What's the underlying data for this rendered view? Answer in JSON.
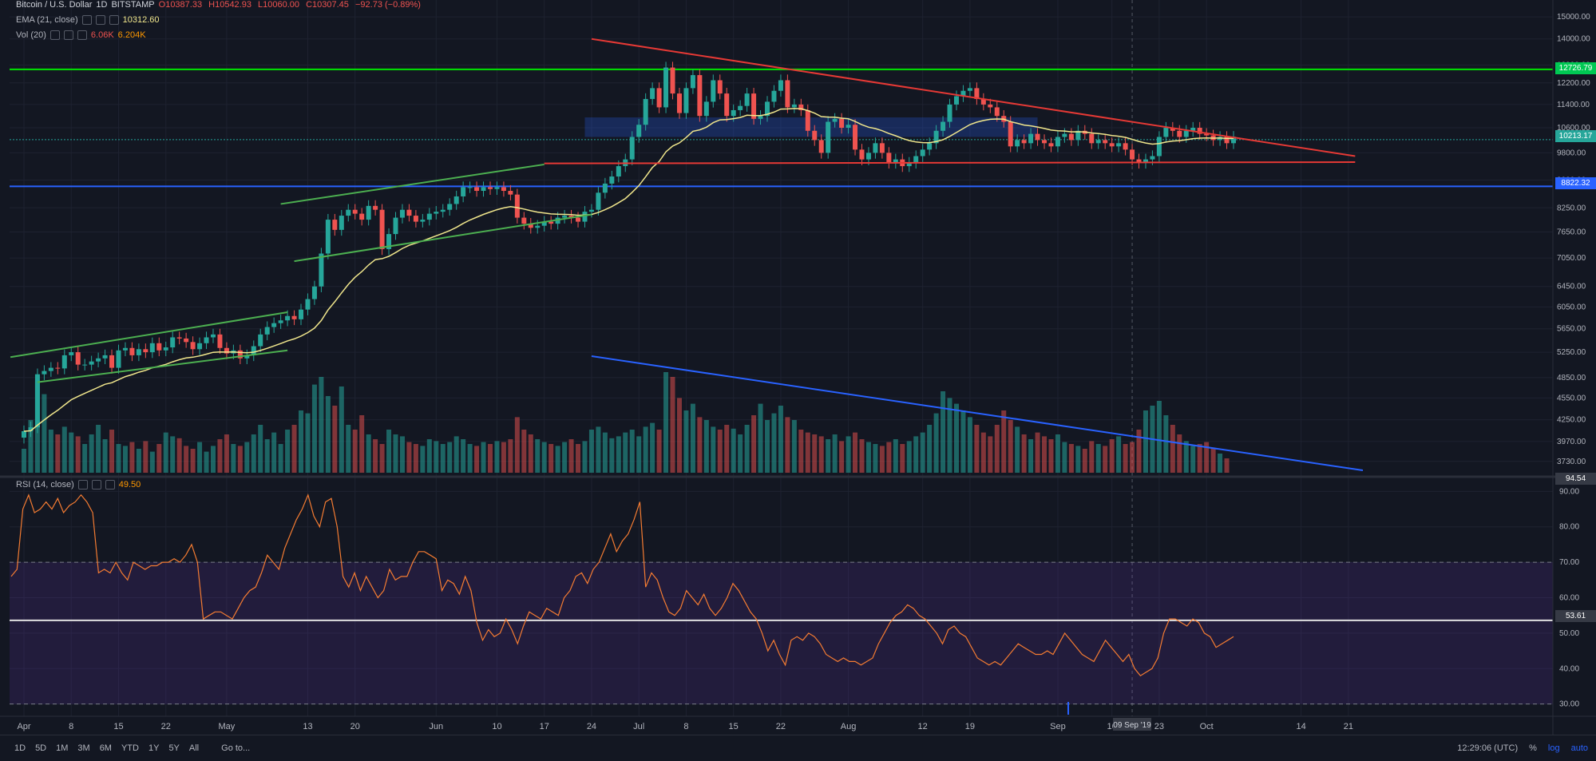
{
  "header": {
    "symbol": "Bitcoin / U.S. Dollar",
    "interval": "1D",
    "exchange": "BITSTAMP",
    "ohlc": {
      "open": "O10387.33",
      "high": "H10542.93",
      "low": "L10060.00",
      "close": "C10307.45",
      "change": "−92.73 (−0.89%)"
    }
  },
  "indicators": {
    "ema": {
      "label": "EMA (21, close)",
      "value": "10312.60"
    },
    "vol": {
      "label": "Vol (20)",
      "value_a": "6.06K",
      "value_b": "6.204K"
    },
    "rsi": {
      "label": "RSI (14, close)",
      "value": "49.50"
    }
  },
  "price_axis": {
    "ticks": [
      "15000.00",
      "14000.00",
      "12900.00",
      "12200.00",
      "11400.00",
      "10600.00",
      "9800.00",
      "9000.00",
      "8250.00",
      "7650.00",
      "7050.00",
      "6450.00",
      "6050.00",
      "5650.00",
      "5250.00",
      "4850.00",
      "4550.00",
      "4250.00",
      "3970.00",
      "3730.00"
    ],
    "tags": [
      {
        "label": "12726.79",
        "color": "#26a69a"
      },
      {
        "label": "10213.17",
        "color": "#26a69a"
      },
      {
        "label": "8822.32",
        "color": "#2962ff"
      },
      {
        "label": "94.54",
        "color": "#363a45"
      }
    ]
  },
  "rsi_axis": {
    "ticks": [
      "90.00",
      "80.00",
      "70.00",
      "60.00",
      "50.00",
      "40.00",
      "30.00"
    ],
    "tag": "53.61"
  },
  "time_axis": {
    "ticks": [
      "Apr",
      "8",
      "15",
      "22",
      "May",
      "13",
      "20",
      "Jun",
      "10",
      "17",
      "24",
      "Jul",
      "8",
      "15",
      "22",
      "Aug",
      "12",
      "19",
      "Sep",
      "16",
      "23",
      "Oct",
      "14",
      "21"
    ],
    "cursor_label": "09 Sep '19"
  },
  "bottom_bar": {
    "timeframes": [
      "1D",
      "5D",
      "1M",
      "3M",
      "6M",
      "YTD",
      "1Y",
      "5Y",
      "All"
    ],
    "goto": "Go to...",
    "clock": "12:29:06 (UTC)",
    "percent": "%",
    "log": "log",
    "auto": "auto"
  },
  "chart_data": [
    {
      "type": "candlestick",
      "title": "Bitcoin / U.S. Dollar, 1D, BITSTAMP",
      "x_range": [
        "2019-04-01",
        "2019-09-10"
      ],
      "ylim": [
        3600,
        15500
      ],
      "y_scale": "log",
      "close": [
        4100,
        4150,
        4900,
        4950,
        5000,
        4990,
        5200,
        5250,
        5050,
        5050,
        5100,
        5150,
        5200,
        5000,
        5280,
        5320,
        5200,
        5300,
        5250,
        5400,
        5280,
        5330,
        5500,
        5480,
        5420,
        5300,
        5400,
        5500,
        5550,
        5320,
        5230,
        5280,
        5150,
        5200,
        5350,
        5550,
        5680,
        5750,
        5800,
        5880,
        5820,
        6000,
        6200,
        6450,
        7150,
        7950,
        7700,
        8050,
        8200,
        8100,
        7950,
        8300,
        8200,
        7250,
        7600,
        8000,
        8200,
        8050,
        7900,
        7950,
        8100,
        8150,
        8200,
        8350,
        8550,
        8800,
        8800,
        8700,
        8800,
        8750,
        8800,
        8700,
        8600,
        8000,
        7850,
        7750,
        7800,
        7900,
        7850,
        8000,
        8050,
        8000,
        7900,
        8150,
        8200,
        8650,
        8900,
        9100,
        9400,
        9600,
        10300,
        10700,
        11600,
        12000,
        11300,
        12800,
        11800,
        11100,
        12000,
        12500,
        11000,
        11500,
        12300,
        11800,
        11000,
        11200,
        11350,
        11800,
        10900,
        11000,
        11500,
        11900,
        12300,
        11300,
        11400,
        11200,
        10500,
        10200,
        9800,
        10800,
        10900,
        10600,
        10700,
        9900,
        9600,
        9800,
        10100,
        9800,
        9500,
        9600,
        9400,
        9500,
        9700,
        9900,
        10100,
        10500,
        10800,
        11400,
        11700,
        11900,
        12000,
        11600,
        11400,
        11300,
        11000,
        10800,
        10000,
        10200,
        10100,
        10400,
        10200,
        10100,
        10000,
        10300,
        10400,
        10200,
        10500,
        10400,
        10100,
        10200,
        10100,
        10000,
        10100,
        9900,
        9600,
        9500,
        9600,
        9700,
        10300,
        10600,
        10500,
        10300,
        10500,
        10600,
        10400,
        10350,
        10200,
        10300,
        10100,
        10307
      ],
      "series": [
        {
          "name": "EMA (21, close)",
          "color": "#f0e68c"
        }
      ],
      "annotations": [
        {
          "type": "hline",
          "price": 12726.79,
          "color": "#00e600"
        },
        {
          "type": "hline",
          "price": 8822.32,
          "color": "#2962ff"
        },
        {
          "type": "hline",
          "price": 10213.17,
          "color": "#26a69a",
          "style": "dotted"
        }
      ]
    },
    {
      "type": "bar",
      "title": "Vol (20)",
      "y_scale": "relative",
      "values": [
        0.25,
        0.55,
        0.95,
        0.82,
        0.45,
        0.4,
        0.48,
        0.42,
        0.38,
        0.3,
        0.4,
        0.5,
        0.35,
        0.45,
        0.3,
        0.28,
        0.32,
        0.25,
        0.33,
        0.22,
        0.3,
        0.42,
        0.38,
        0.36,
        0.28,
        0.25,
        0.32,
        0.22,
        0.28,
        0.35,
        0.4,
        0.3,
        0.28,
        0.32,
        0.4,
        0.5,
        0.35,
        0.42,
        0.3,
        0.45,
        0.5,
        0.65,
        0.62,
        0.92,
        1.0,
        0.8,
        0.7,
        0.9,
        0.5,
        0.45,
        0.6,
        0.4,
        0.35,
        0.3,
        0.45,
        0.4,
        0.38,
        0.32,
        0.3,
        0.28,
        0.35,
        0.33,
        0.3,
        0.32,
        0.38,
        0.35,
        0.3,
        0.28,
        0.32,
        0.3,
        0.33,
        0.32,
        0.35,
        0.58,
        0.45,
        0.4,
        0.35,
        0.32,
        0.3,
        0.28,
        0.32,
        0.35,
        0.3,
        0.33,
        0.45,
        0.48,
        0.42,
        0.36,
        0.38,
        0.42,
        0.45,
        0.38,
        0.48,
        0.52,
        0.45,
        1.05,
        1.0,
        0.78,
        0.65,
        0.72,
        0.58,
        0.55,
        0.48,
        0.45,
        0.5,
        0.46,
        0.4,
        0.5,
        0.6,
        0.72,
        0.55,
        0.62,
        0.7,
        0.58,
        0.55,
        0.45,
        0.42,
        0.4,
        0.38,
        0.35,
        0.4,
        0.33,
        0.38,
        0.42,
        0.35,
        0.32,
        0.3,
        0.28,
        0.32,
        0.35,
        0.3,
        0.33,
        0.38,
        0.42,
        0.5,
        0.62,
        0.85,
        0.78,
        0.72,
        0.65,
        0.58,
        0.5,
        0.42,
        0.38,
        0.5,
        0.65,
        0.55,
        0.48,
        0.4,
        0.35,
        0.42,
        0.38,
        0.35,
        0.4,
        0.32,
        0.3,
        0.28,
        0.25,
        0.33,
        0.3,
        0.28,
        0.35,
        0.38,
        0.3,
        0.32,
        0.45,
        0.65,
        0.7,
        0.75,
        0.6,
        0.5,
        0.4,
        0.33,
        0.28,
        0.3,
        0.32,
        0.25,
        0.2,
        0.15
      ]
    },
    {
      "type": "line",
      "title": "RSI (14, close)",
      "ylim": [
        27,
        93
      ],
      "values": [
        66,
        68,
        85,
        89,
        84,
        85,
        87,
        85,
        88,
        84,
        86,
        87,
        89,
        87,
        84,
        67,
        68,
        67,
        70,
        67,
        65,
        70,
        69,
        68,
        69,
        69,
        70,
        70,
        71,
        70,
        72,
        75,
        70,
        54,
        55,
        56,
        56,
        55,
        54,
        57,
        60,
        62,
        63,
        67,
        72,
        70,
        68,
        74,
        78,
        82,
        85,
        89,
        83,
        80,
        87,
        88,
        80,
        66,
        63,
        67,
        62,
        66,
        63,
        60,
        62,
        68,
        65,
        66,
        66,
        70,
        73,
        73,
        72,
        71,
        62,
        65,
        64,
        61,
        66,
        62,
        53,
        48,
        51,
        49,
        50,
        54,
        51,
        47,
        52,
        56,
        55,
        54,
        57,
        56,
        55,
        60,
        62,
        66,
        67,
        64,
        68,
        70,
        74,
        78,
        73,
        76,
        78,
        82,
        87,
        63,
        67,
        65,
        60,
        56,
        55,
        57,
        62,
        60,
        58,
        61,
        57,
        55,
        57,
        60,
        64,
        62,
        59,
        56,
        54,
        50,
        45,
        48,
        44,
        41,
        48,
        49,
        48,
        50,
        49,
        47,
        44,
        43,
        42,
        43,
        42,
        42,
        41,
        42,
        43,
        47,
        50,
        53,
        55,
        56,
        58,
        57,
        55,
        54,
        52,
        50,
        47,
        51,
        52,
        50,
        49,
        46,
        43,
        42,
        41,
        42,
        41,
        43,
        45,
        47,
        46,
        45,
        44,
        44,
        45,
        44,
        47,
        50,
        48,
        46,
        44,
        43,
        42,
        45,
        48,
        46,
        44,
        42,
        44,
        40,
        38,
        39,
        40,
        43,
        50,
        54,
        54,
        53,
        52,
        54,
        53,
        50,
        49,
        46,
        47,
        48,
        49
      ],
      "levels": [
        70,
        30
      ],
      "reference_line": 53.61
    }
  ]
}
